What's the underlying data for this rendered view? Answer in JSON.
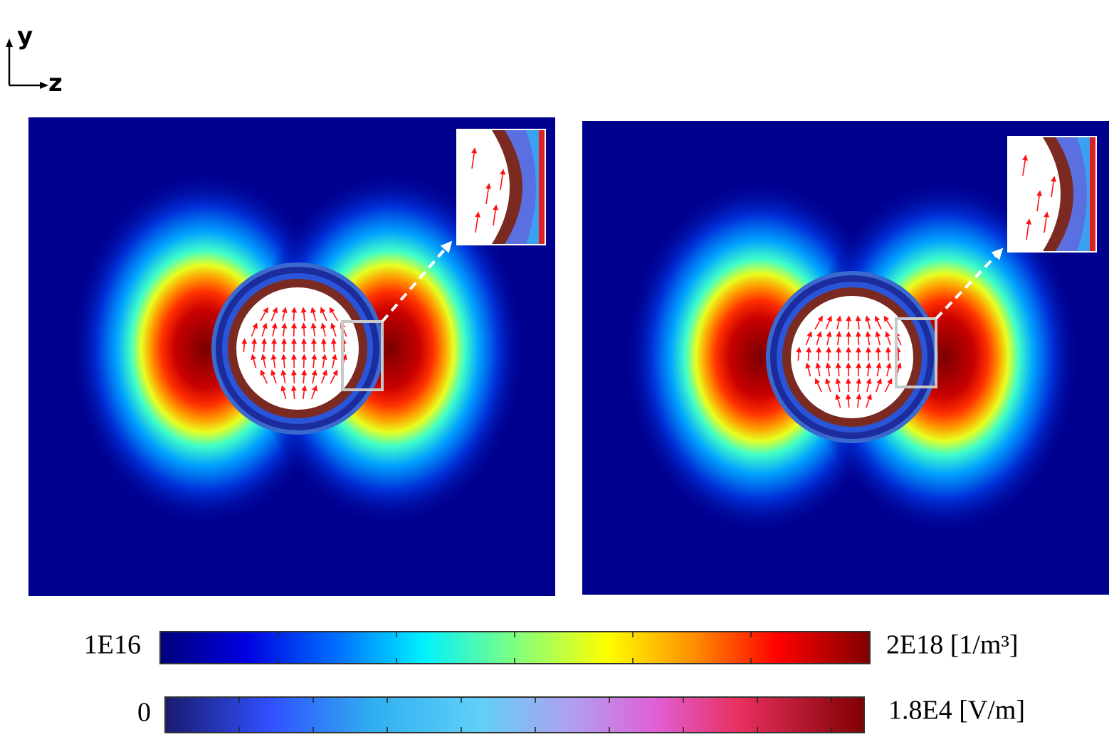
{
  "axes": {
    "y": "y",
    "z": "z"
  },
  "colorbars": [
    {
      "min": "1E16",
      "max": "2E18 [1/m³]"
    },
    {
      "min": "0",
      "max": "1.8E4 [V/m]"
    }
  ]
}
